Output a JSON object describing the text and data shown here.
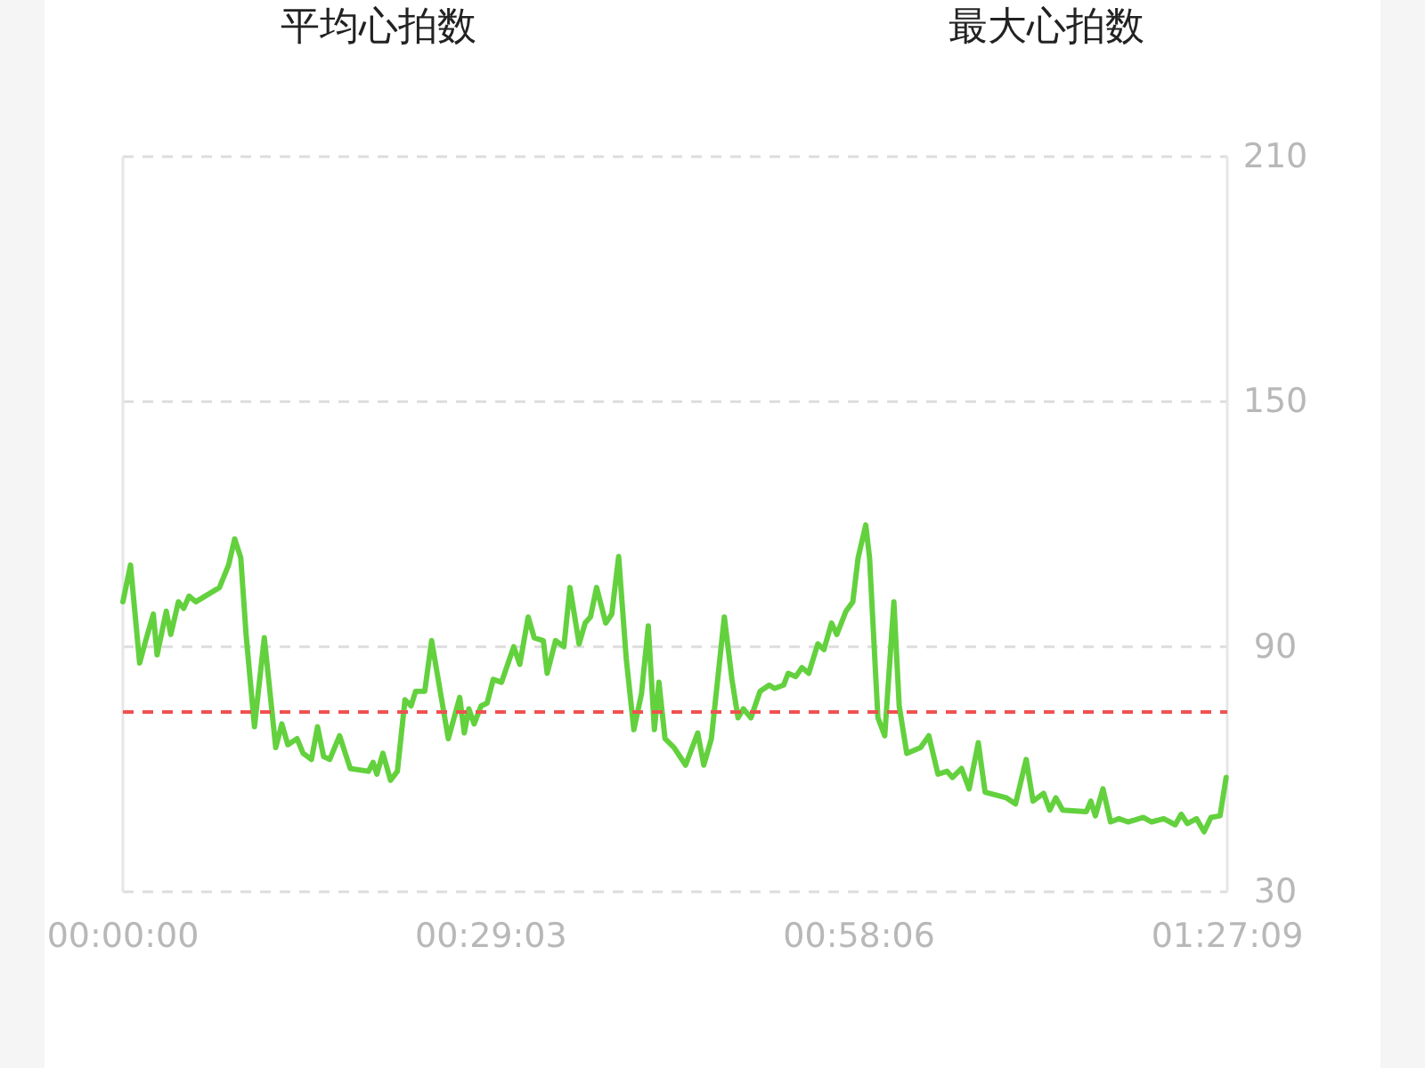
{
  "chart_data": {
    "type": "line",
    "annotations": [
      "平均心拍数",
      "最大心拍数"
    ],
    "x": [
      0,
      0.01,
      0.022,
      0.03,
      0.04,
      0.045,
      0.057,
      0.063,
      0.073,
      0.08,
      0.087,
      0.096,
      0.127,
      0.139,
      0.147,
      0.155,
      0.162,
      0.173,
      0.186,
      0.201,
      0.209,
      0.217,
      0.229,
      0.237,
      0.248,
      0.256,
      0.264,
      0.272,
      0.285,
      0.299,
      0.323,
      0.329,
      0.334,
      0.342,
      0.352,
      0.361,
      0.371,
      0.379,
      0.385,
      0.397,
      0.406,
      0.428,
      0.443,
      0.449,
      0.455,
      0.462,
      0.471,
      0.479,
      0.487,
      0.498,
      0.514,
      0.522,
      0.533,
      0.541,
      0.553,
      0.558,
      0.569,
      0.58,
      0.588,
      0.6,
      0.608,
      0.615,
      0.623,
      0.635,
      0.643,
      0.652,
      0.662,
      0.672,
      0.682,
      0.691,
      0.699,
      0.705,
      0.713,
      0.725,
      0.74,
      0.756,
      0.764,
      0.774,
      0.791,
      0.801,
      0.809,
      0.816,
      0.826,
      0.838,
      0.85,
      0.857,
      0.869,
      0.875,
      0.885,
      0.893,
      0.902,
      0.914,
      0.922,
      0.932,
      0.939,
      0.951,
      0.96,
      0.967,
      0.977,
      0.982,
      0.993,
      1.002,
      1.014,
      1.021,
      1.031,
      1.049,
      1.06,
      1.072,
      1.084,
      1.091,
      1.103,
      1.113,
      1.125,
      1.134,
      1.162,
      1.174,
      1.188,
      1.197,
      1.211,
      1.219,
      1.227,
      1.236,
      1.267,
      1.273,
      1.279,
      1.289,
      1.299,
      1.31,
      1.322,
      1.342,
      1.353,
      1.369,
      1.384,
      1.392,
      1.4,
      1.412,
      1.422,
      1.431,
      1.443,
      1.451
    ],
    "series": [
      {
        "color": "#63d13e",
        "values": [
          101,
          110,
          86,
          91.5,
          98,
          88,
          98.7,
          93,
          101,
          99.4,
          102.4,
          101,
          104.5,
          110,
          116.4,
          111.8,
          93,
          70.4,
          92.2,
          65.3,
          71.1,
          66,
          67.5,
          63.9,
          62.4,
          70.4,
          63.1,
          62.4,
          68.2,
          60.2,
          59.5,
          61.7,
          58.8,
          63.9,
          57.3,
          59.5,
          77,
          75.5,
          79.1,
          79.1,
          91.5,
          67.5,
          77.6,
          68.9,
          74.8,
          71.1,
          75.5,
          76.2,
          82,
          81.3,
          90,
          85.7,
          97.3,
          92.2,
          91.5,
          83.5,
          91.5,
          90,
          104.5,
          90.7,
          95.8,
          97.3,
          104.5,
          95.8,
          98,
          112.1,
          87.1,
          69.7,
          78.4,
          95.1,
          69.7,
          81.3,
          67.5,
          65.3,
          61,
          68.9,
          61,
          67.5,
          97.3,
          82,
          72.6,
          74.8,
          72.6,
          79.1,
          80.6,
          79.8,
          80.6,
          83.5,
          82.7,
          84.9,
          83.5,
          90.7,
          89.3,
          95.8,
          93,
          98.7,
          101,
          111.8,
          119.8,
          111.8,
          72.6,
          68.2,
          101,
          75.5,
          63.9,
          65.3,
          68.2,
          58.8,
          59.5,
          58,
          60.2,
          55.2,
          66.5,
          54.4,
          53,
          51.5,
          62.4,
          52.2,
          54.1,
          50,
          53,
          50,
          49.6,
          52.2,
          48.6,
          55.2,
          47.1,
          47.9,
          47.1,
          48.2,
          47.1,
          47.9,
          46.4,
          49,
          46.7,
          47.9,
          44.7,
          48.2,
          48.6,
          58
        ]
      }
    ],
    "xlim": [
      0,
      1.4525
    ],
    "xticks": [
      {
        "value": 0,
        "label": "00:00:00"
      },
      {
        "value": 0.4842,
        "label": "00:29:03"
      },
      {
        "value": 0.9683,
        "label": "00:58:06"
      },
      {
        "value": 1.4525,
        "label": "01:27:09"
      }
    ],
    "ylim": [
      30,
      210
    ],
    "yticks": [
      30,
      90,
      150,
      210
    ],
    "grid": "y",
    "ref_lines": [
      {
        "axis": "y",
        "value": 74,
        "color": "#f05050",
        "line_style": "dashed"
      }
    ]
  }
}
